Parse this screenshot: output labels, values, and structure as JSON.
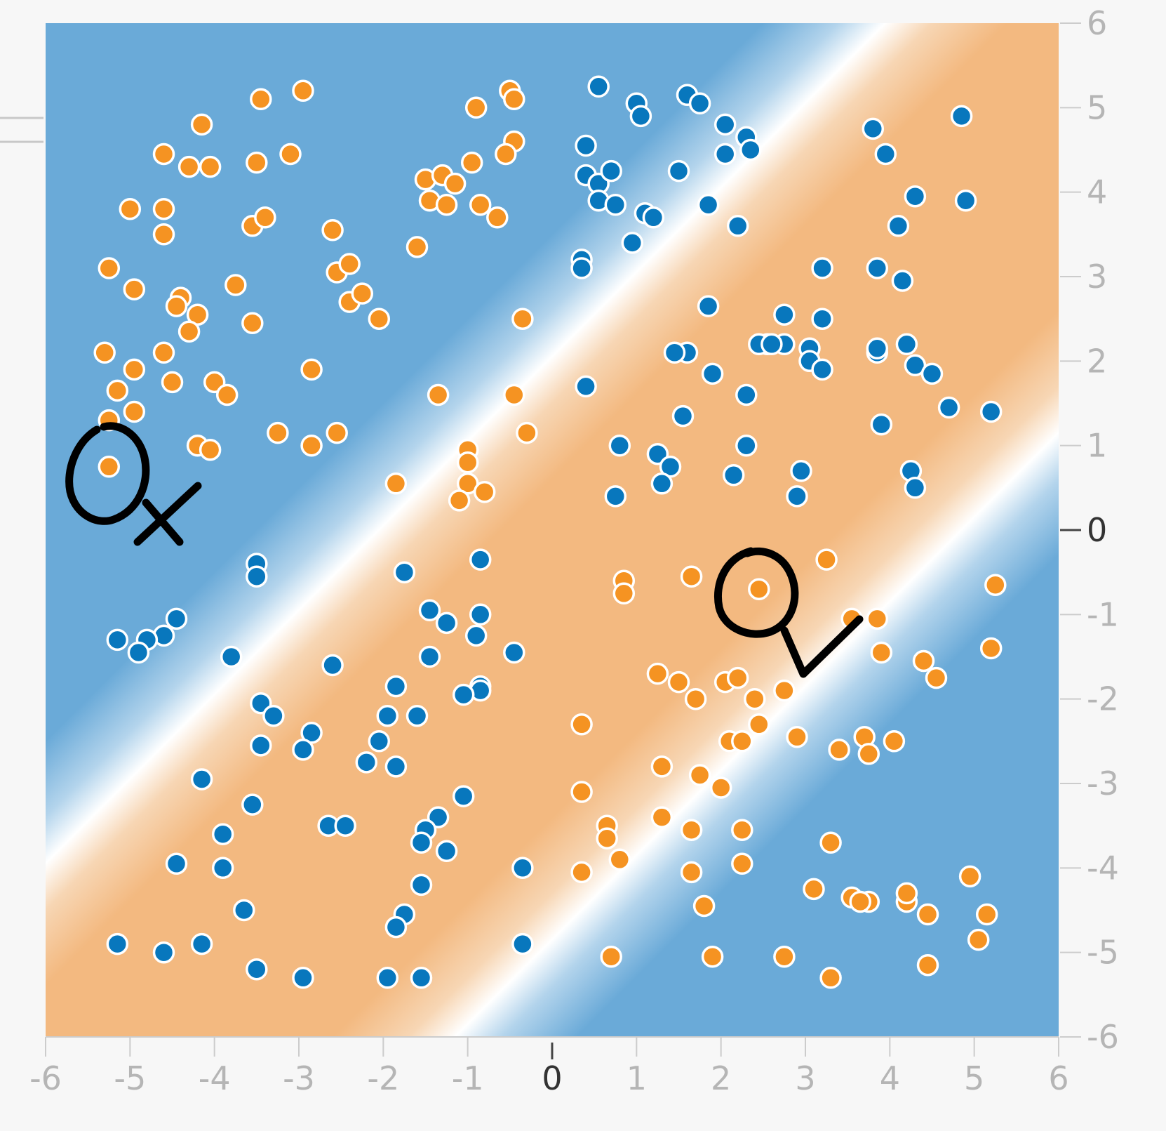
{
  "chart_data": {
    "type": "scatter",
    "title": "",
    "xlabel": "",
    "ylabel": "",
    "xlim": [
      -6,
      6
    ],
    "ylim": [
      -6,
      6
    ],
    "x_ticks": [
      "-6",
      "-5",
      "-4",
      "-3",
      "-2",
      "-1",
      "0",
      "1",
      "2",
      "3",
      "4",
      "5",
      "6"
    ],
    "y_ticks": [
      "6",
      "5",
      "4",
      "3",
      "2",
      "1",
      "0",
      "-1",
      "-2",
      "-3",
      "-4",
      "-5",
      "-6"
    ],
    "y_axis_side": "right",
    "grid": false,
    "legend": "none",
    "background": "decision-boundary heatmap: blue outer regions, orange diagonal band running from upper-left to lower-right",
    "colors": {
      "positive": "#0877bd",
      "negative": "#f59322",
      "positive_region": "#6aaad8",
      "negative_region": "#f3b980",
      "boundary": "#ffffff",
      "point_outline": "#ffffff",
      "annotation": "#000000"
    },
    "series": [
      {
        "class": "blue",
        "points": [
          [
            0.55,
            5.25
          ],
          [
            1.0,
            5.05
          ],
          [
            1.05,
            4.9
          ],
          [
            1.6,
            5.15
          ],
          [
            1.75,
            5.05
          ],
          [
            2.05,
            4.8
          ],
          [
            2.3,
            4.65
          ],
          [
            2.35,
            4.5
          ],
          [
            2.05,
            4.45
          ],
          [
            0.4,
            4.55
          ],
          [
            0.4,
            4.2
          ],
          [
            0.55,
            4.1
          ],
          [
            0.7,
            4.25
          ],
          [
            0.55,
            3.9
          ],
          [
            0.75,
            3.85
          ],
          [
            1.1,
            3.75
          ],
          [
            1.2,
            3.7
          ],
          [
            1.5,
            4.25
          ],
          [
            1.85,
            3.85
          ],
          [
            2.2,
            3.6
          ],
          [
            0.95,
            3.4
          ],
          [
            0.35,
            3.2
          ],
          [
            0.35,
            3.1
          ],
          [
            1.85,
            2.65
          ],
          [
            1.6,
            2.1
          ],
          [
            1.45,
            2.1
          ],
          [
            1.9,
            1.85
          ],
          [
            2.3,
            1.6
          ],
          [
            0.4,
            1.7
          ],
          [
            1.55,
            1.35
          ],
          [
            0.8,
            1.0
          ],
          [
            1.25,
            0.9
          ],
          [
            1.4,
            0.75
          ],
          [
            1.3,
            0.55
          ],
          [
            0.75,
            0.4
          ],
          [
            2.15,
            0.65
          ],
          [
            2.3,
            1.0
          ],
          [
            2.75,
            2.55
          ],
          [
            2.55,
            2.2
          ],
          [
            2.75,
            2.2
          ],
          [
            3.05,
            2.15
          ],
          [
            3.05,
            2.0
          ],
          [
            3.2,
            1.9
          ],
          [
            3.2,
            2.5
          ],
          [
            3.2,
            3.1
          ],
          [
            3.85,
            3.1
          ],
          [
            4.15,
            2.95
          ],
          [
            3.85,
            2.1
          ],
          [
            3.85,
            2.15
          ],
          [
            4.2,
            2.2
          ],
          [
            4.3,
            1.95
          ],
          [
            4.5,
            1.85
          ],
          [
            4.7,
            1.45
          ],
          [
            5.2,
            1.4
          ],
          [
            3.9,
            1.25
          ],
          [
            4.25,
            0.7
          ],
          [
            4.3,
            0.5
          ],
          [
            2.95,
            0.7
          ],
          [
            2.9,
            0.4
          ],
          [
            3.8,
            4.75
          ],
          [
            3.95,
            4.45
          ],
          [
            4.3,
            3.95
          ],
          [
            4.1,
            3.6
          ],
          [
            4.85,
            4.9
          ],
          [
            4.9,
            3.9
          ],
          [
            2.45,
            2.2
          ],
          [
            2.6,
            2.2
          ],
          [
            -3.5,
            -0.4
          ],
          [
            -3.5,
            -0.55
          ],
          [
            -4.45,
            -1.05
          ],
          [
            -4.6,
            -1.25
          ],
          [
            -4.8,
            -1.3
          ],
          [
            -4.9,
            -1.45
          ],
          [
            -5.15,
            -1.3
          ],
          [
            -3.8,
            -1.5
          ],
          [
            -2.6,
            -1.6
          ],
          [
            -1.75,
            -0.5
          ],
          [
            -0.85,
            -0.35
          ],
          [
            -1.45,
            -0.95
          ],
          [
            -1.25,
            -1.1
          ],
          [
            -0.85,
            -1.0
          ],
          [
            -0.9,
            -1.25
          ],
          [
            -1.45,
            -1.5
          ],
          [
            -0.45,
            -1.45
          ],
          [
            -0.85,
            -1.85
          ],
          [
            -0.85,
            -1.9
          ],
          [
            -1.05,
            -1.95
          ],
          [
            -1.85,
            -1.85
          ],
          [
            -1.95,
            -2.2
          ],
          [
            -1.6,
            -2.2
          ],
          [
            -2.05,
            -2.5
          ],
          [
            -2.2,
            -2.75
          ],
          [
            -1.85,
            -2.8
          ],
          [
            -2.85,
            -2.4
          ],
          [
            -2.95,
            -2.6
          ],
          [
            -3.45,
            -2.05
          ],
          [
            -3.3,
            -2.2
          ],
          [
            -3.45,
            -2.55
          ],
          [
            -4.15,
            -2.95
          ],
          [
            -3.55,
            -3.25
          ],
          [
            -3.9,
            -3.6
          ],
          [
            -2.65,
            -3.5
          ],
          [
            -2.45,
            -3.5
          ],
          [
            -1.05,
            -3.15
          ],
          [
            -1.35,
            -3.4
          ],
          [
            -1.5,
            -3.55
          ],
          [
            -1.55,
            -3.7
          ],
          [
            -1.25,
            -3.8
          ],
          [
            -4.45,
            -3.95
          ],
          [
            -3.9,
            -4.0
          ],
          [
            -3.65,
            -4.5
          ],
          [
            -1.55,
            -4.2
          ],
          [
            -1.75,
            -4.55
          ],
          [
            -1.85,
            -4.7
          ],
          [
            -0.35,
            -4.0
          ],
          [
            -5.15,
            -4.9
          ],
          [
            -4.6,
            -5.0
          ],
          [
            -4.15,
            -4.9
          ],
          [
            -3.5,
            -5.2
          ],
          [
            -2.95,
            -5.3
          ],
          [
            -1.95,
            -5.3
          ],
          [
            -1.55,
            -5.3
          ],
          [
            -0.35,
            -4.9
          ]
        ]
      },
      {
        "class": "orange",
        "points": [
          [
            -2.95,
            5.2
          ],
          [
            -3.45,
            5.1
          ],
          [
            -4.15,
            4.8
          ],
          [
            -4.6,
            4.45
          ],
          [
            -4.3,
            4.3
          ],
          [
            -4.05,
            4.3
          ],
          [
            -3.5,
            4.35
          ],
          [
            -3.1,
            4.45
          ],
          [
            -5.0,
            3.8
          ],
          [
            -4.6,
            3.8
          ],
          [
            -4.6,
            3.5
          ],
          [
            -3.55,
            3.6
          ],
          [
            -3.4,
            3.7
          ],
          [
            -2.6,
            3.55
          ],
          [
            -2.55,
            3.05
          ],
          [
            -2.4,
            3.15
          ],
          [
            -5.25,
            3.1
          ],
          [
            -4.95,
            2.85
          ],
          [
            -4.4,
            2.75
          ],
          [
            -4.45,
            2.65
          ],
          [
            -4.2,
            2.55
          ],
          [
            -4.3,
            2.35
          ],
          [
            -3.75,
            2.9
          ],
          [
            -3.55,
            2.45
          ],
          [
            -2.4,
            2.7
          ],
          [
            -2.25,
            2.8
          ],
          [
            -2.05,
            2.5
          ],
          [
            -5.3,
            2.1
          ],
          [
            -4.6,
            2.1
          ],
          [
            -4.95,
            1.9
          ],
          [
            -4.5,
            1.75
          ],
          [
            -4.0,
            1.75
          ],
          [
            -3.85,
            1.6
          ],
          [
            -2.85,
            1.9
          ],
          [
            -5.15,
            1.65
          ],
          [
            -4.95,
            1.4
          ],
          [
            -5.25,
            1.3
          ],
          [
            -3.25,
            1.15
          ],
          [
            -2.55,
            1.15
          ],
          [
            -2.85,
            1.0
          ],
          [
            -4.2,
            1.0
          ],
          [
            -4.05,
            0.95
          ],
          [
            -5.25,
            0.75
          ],
          [
            -1.35,
            1.6
          ],
          [
            -1.0,
            0.95
          ],
          [
            -1.0,
            0.8
          ],
          [
            -1.0,
            0.55
          ],
          [
            -1.1,
            0.35
          ],
          [
            -0.8,
            0.45
          ],
          [
            -1.85,
            0.55
          ],
          [
            -0.45,
            1.6
          ],
          [
            -0.3,
            1.15
          ],
          [
            -0.35,
            2.5
          ],
          [
            -1.6,
            3.35
          ],
          [
            -0.9,
            5.0
          ],
          [
            -0.5,
            5.2
          ],
          [
            -0.45,
            5.1
          ],
          [
            -0.45,
            4.6
          ],
          [
            -0.55,
            4.45
          ],
          [
            -0.95,
            4.35
          ],
          [
            -1.5,
            4.15
          ],
          [
            -1.3,
            4.2
          ],
          [
            -1.15,
            4.1
          ],
          [
            -1.45,
            3.9
          ],
          [
            -1.25,
            3.85
          ],
          [
            -0.85,
            3.85
          ],
          [
            -0.65,
            3.7
          ],
          [
            0.85,
            -0.6
          ],
          [
            0.85,
            -0.75
          ],
          [
            1.65,
            -0.55
          ],
          [
            2.45,
            -0.7
          ],
          [
            3.25,
            -0.35
          ],
          [
            3.55,
            -1.05
          ],
          [
            3.85,
            -1.05
          ],
          [
            3.9,
            -1.45
          ],
          [
            4.4,
            -1.55
          ],
          [
            4.55,
            -1.75
          ],
          [
            5.25,
            -0.65
          ],
          [
            5.2,
            -1.4
          ],
          [
            1.25,
            -1.7
          ],
          [
            1.5,
            -1.8
          ],
          [
            1.7,
            -2.0
          ],
          [
            2.05,
            -1.8
          ],
          [
            2.2,
            -1.75
          ],
          [
            2.4,
            -2.0
          ],
          [
            2.45,
            -2.3
          ],
          [
            2.75,
            -1.9
          ],
          [
            0.35,
            -2.3
          ],
          [
            2.1,
            -2.5
          ],
          [
            2.25,
            -2.5
          ],
          [
            2.9,
            -2.45
          ],
          [
            3.4,
            -2.6
          ],
          [
            3.7,
            -2.45
          ],
          [
            3.75,
            -2.65
          ],
          [
            4.05,
            -2.5
          ],
          [
            1.3,
            -2.8
          ],
          [
            1.75,
            -2.9
          ],
          [
            2.0,
            -3.05
          ],
          [
            0.35,
            -3.1
          ],
          [
            0.65,
            -3.5
          ],
          [
            0.65,
            -3.65
          ],
          [
            1.3,
            -3.4
          ],
          [
            1.65,
            -3.55
          ],
          [
            2.25,
            -3.55
          ],
          [
            3.3,
            -3.7
          ],
          [
            0.8,
            -3.9
          ],
          [
            0.35,
            -4.05
          ],
          [
            1.65,
            -4.05
          ],
          [
            2.25,
            -3.95
          ],
          [
            3.1,
            -4.25
          ],
          [
            3.55,
            -4.35
          ],
          [
            3.75,
            -4.4
          ],
          [
            3.65,
            -4.4
          ],
          [
            4.2,
            -4.4
          ],
          [
            4.2,
            -4.3
          ],
          [
            4.45,
            -4.55
          ],
          [
            4.95,
            -4.1
          ],
          [
            5.15,
            -4.55
          ],
          [
            5.05,
            -4.85
          ],
          [
            1.8,
            -4.45
          ],
          [
            0.7,
            -5.05
          ],
          [
            1.9,
            -5.05
          ],
          [
            2.75,
            -5.05
          ],
          [
            3.3,
            -5.3
          ],
          [
            4.45,
            -5.15
          ]
        ]
      }
    ],
    "annotations": [
      {
        "type": "circle",
        "x": -5.2,
        "y": 0.7,
        "meaning": "misclassified point"
      },
      {
        "type": "cross-mark",
        "x": -4.6,
        "y": 0.3,
        "meaning": "wrong"
      },
      {
        "type": "circle",
        "x": 2.45,
        "y": -0.7,
        "meaning": "correctly classified point"
      },
      {
        "type": "check-mark",
        "x": 3.3,
        "y": -1.3,
        "meaning": "correct"
      }
    ]
  }
}
